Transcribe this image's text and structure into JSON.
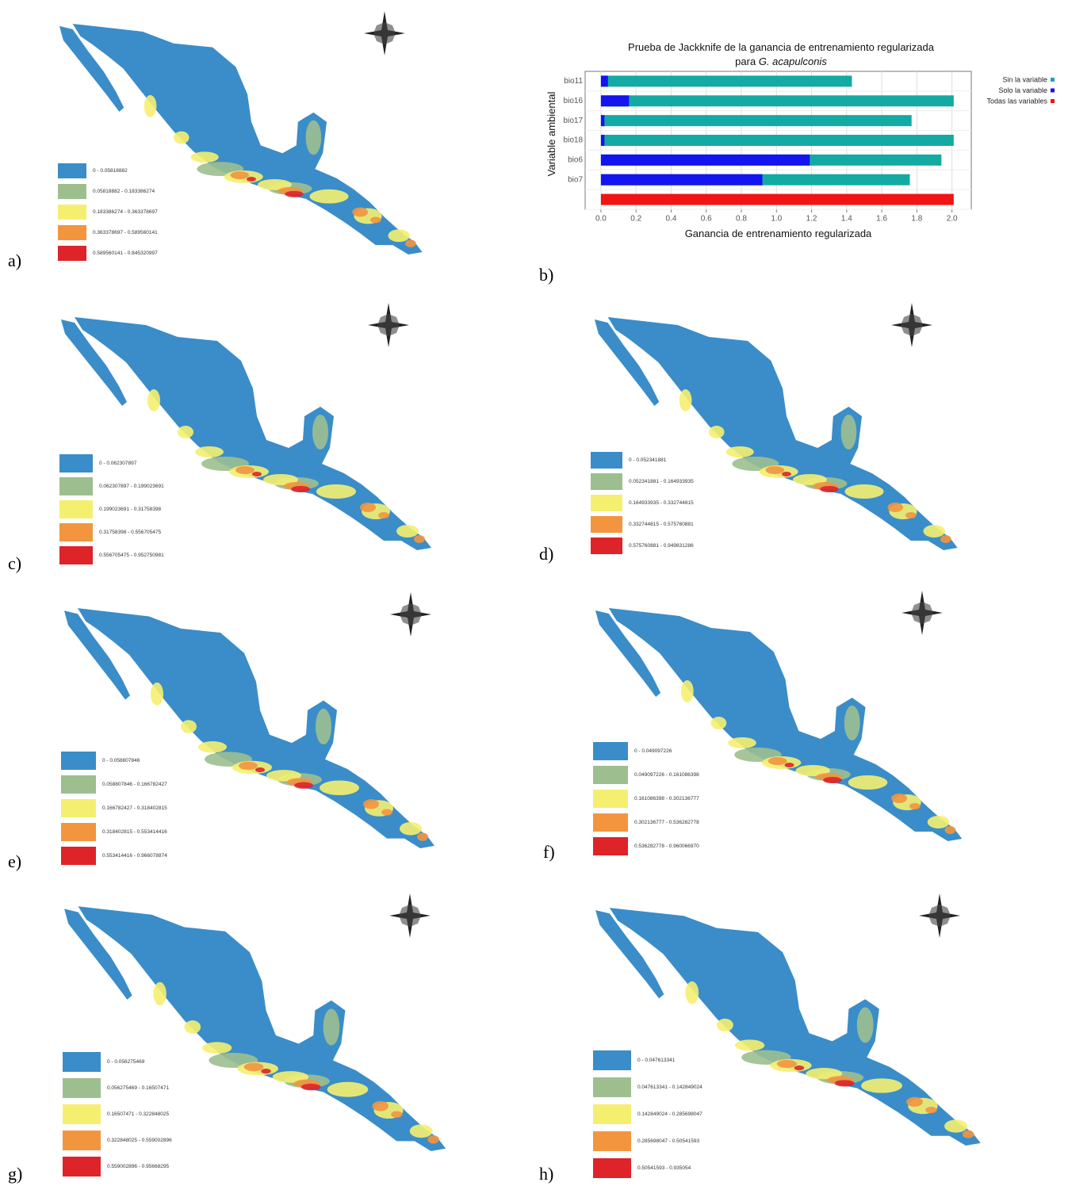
{
  "legend_colors": [
    "#3a8dc8",
    "#9dbf90",
    "#f5ef70",
    "#f3953f",
    "#de2329"
  ],
  "panels": [
    {
      "label": "a)",
      "legend": [
        "0 - 0.05818882",
        "0.05818882 - 0.183386274",
        "0.183386274 - 0.363378697",
        "0.363378697 - 0.589560141",
        "0.589560141 - 0.845320997"
      ]
    },
    {
      "label": "b)"
    },
    {
      "label": "c)",
      "legend": [
        "0 - 0.062307897",
        "0.062307897 - 0.199023691",
        "0.199023691 - 0.31758398",
        "0.31758398 - 0.556705475",
        "0.556705475 - 0.952750981"
      ]
    },
    {
      "label": "d)",
      "legend": [
        "0 - 0.052341881",
        "0.052341881 - 0.164933935",
        "0.164933935 - 0.332744815",
        "0.332744815 - 0.575760881",
        "0.575760881 - 0.949831286"
      ]
    },
    {
      "label": "e)",
      "legend": [
        "0 - 0.058807846",
        "0.058807846 - 0.166782427",
        "0.166782427 - 0.318402815",
        "0.318402815 - 0.553414416",
        "0.553414416 - 0.966078874"
      ]
    },
    {
      "label": "f)",
      "legend": [
        "0 - 0.049097226",
        "0.049097226 - 0.161086398",
        "0.161086398 - 0.302136777",
        "0.302136777 - 0.536282778",
        "0.536282778 - 0.960066970"
      ]
    },
    {
      "label": "g)",
      "legend": [
        "0 - 0.056275469",
        "0.056275469 - 0.16507471",
        "0.16507471 - 0.322848025",
        "0.322848025 - 0.559002896",
        "0.559002896 - 0.95668295"
      ]
    },
    {
      "label": "h)",
      "legend": [
        "0 - 0.047613341",
        "0.047613341 - 0.142849024",
        "0.142849024 - 0.285698047",
        "0.285698047 - 0.50541593",
        "0.50541593 - 0.935054"
      ]
    }
  ],
  "chart_data": {
    "type": "bar",
    "title": {
      "line1": "Prueba de Jackknife de la ganancia de entrenamiento regularizada",
      "line2": "para",
      "species": "G. acapulconis"
    },
    "x_label": "Ganancia de entrenamiento regularizada",
    "y_label": "Variable ambiental",
    "categories": [
      "bio11",
      "bio16",
      "bio17",
      "bio18",
      "bio6",
      "bio7",
      null
    ],
    "series": [
      {
        "name": "Sin la variable",
        "color": "#13aaa4",
        "values": [
          1.43,
          2.01,
          1.77,
          2.01,
          1.94,
          1.76,
          null
        ]
      },
      {
        "name": "Solo la variable",
        "color": "#1414f0",
        "values": [
          0.04,
          0.16,
          0.02,
          0.02,
          1.19,
          0.92,
          null
        ]
      },
      {
        "name": "Todas las variables",
        "color": "#f01414",
        "values": [
          null,
          null,
          null,
          null,
          null,
          null,
          2.01
        ]
      }
    ],
    "xlim": [
      -0.09,
      2.11
    ],
    "xticks": [
      {
        "value": 0,
        "label": "0.0"
      },
      0.2,
      0.4,
      0.6,
      0.8,
      {
        "value": 1,
        "label": "1.0"
      },
      1.2,
      1.4,
      1.6,
      1.8,
      {
        "value": 2,
        "label": "2.0"
      }
    ],
    "grid": true
  }
}
